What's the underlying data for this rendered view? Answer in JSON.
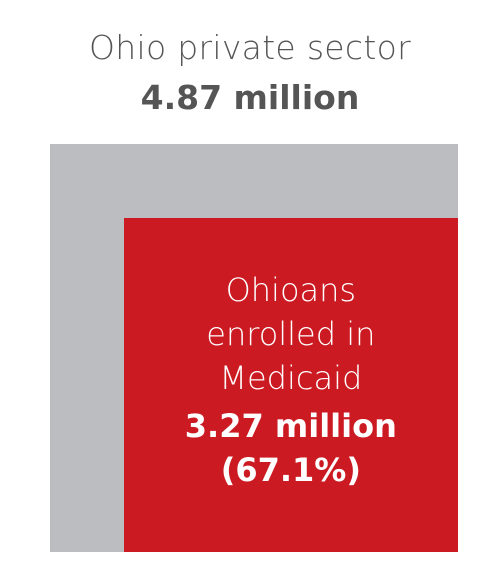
{
  "chart_data": {
    "type": "nested-square",
    "categories": [
      "Ohio private sector",
      "Ohioans enrolled in Medicaid"
    ],
    "values": [
      4.87,
      3.27
    ],
    "value_labels": [
      "4.87 million",
      "3.27 million"
    ],
    "percent": 67.1,
    "percent_label": "(67.1%)",
    "colors": [
      "#bcbdc0",
      "#cc1a22"
    ]
  }
}
